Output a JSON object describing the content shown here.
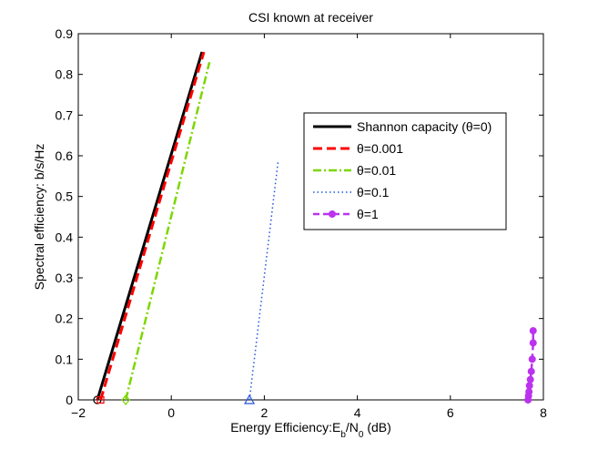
{
  "chart_data": {
    "type": "line",
    "title": "CSI known at receiver",
    "xlabel": "Energy Efficiency:E_b/N_0 (dB)",
    "xlabel_parts": {
      "main": "Energy Efficiency:E",
      "sub1": "b",
      "mid": "/N",
      "sub2": "0",
      "tail": " (dB)"
    },
    "ylabel": "Spectral efficiency: b/s/Hz",
    "xlim": [
      -2,
      8
    ],
    "ylim": [
      0,
      0.9
    ],
    "xticks": [
      -2,
      0,
      2,
      4,
      6,
      8
    ],
    "yticks": [
      0,
      0.1,
      0.2,
      0.3,
      0.4,
      0.5,
      0.6,
      0.7,
      0.8,
      0.9
    ],
    "grid": false,
    "legend_position": "upper-right",
    "series": [
      {
        "name": "Shannon capacity (θ=0)",
        "color": "#000000",
        "style": "solid",
        "marker": "circle",
        "x": [
          -1.59,
          0.66
        ],
        "y": [
          0,
          0.855
        ]
      },
      {
        "name": "θ=0.001",
        "color": "#ff0000",
        "style": "dashed",
        "marker": "square",
        "x": [
          -1.52,
          0.7
        ],
        "y": [
          0,
          0.855
        ]
      },
      {
        "name": "θ=0.01",
        "color": "#7cd600",
        "style": "dashdot",
        "marker": "diamond",
        "x": [
          -0.98,
          0.82
        ],
        "y": [
          0,
          0.83
        ]
      },
      {
        "name": "θ=0.1",
        "color": "#2255dd",
        "style": "dotted",
        "marker": "triangle",
        "x": [
          1.68,
          2.3
        ],
        "y": [
          0,
          0.59
        ]
      },
      {
        "name": "θ=1",
        "color": "#bb33ee",
        "style": "dashed-dots",
        "marker": "dot",
        "x": [
          7.67,
          7.68,
          7.69,
          7.7,
          7.72,
          7.74,
          7.76,
          7.78,
          7.78
        ],
        "y": [
          0,
          0.01,
          0.02,
          0.035,
          0.05,
          0.07,
          0.1,
          0.14,
          0.17
        ]
      }
    ]
  }
}
